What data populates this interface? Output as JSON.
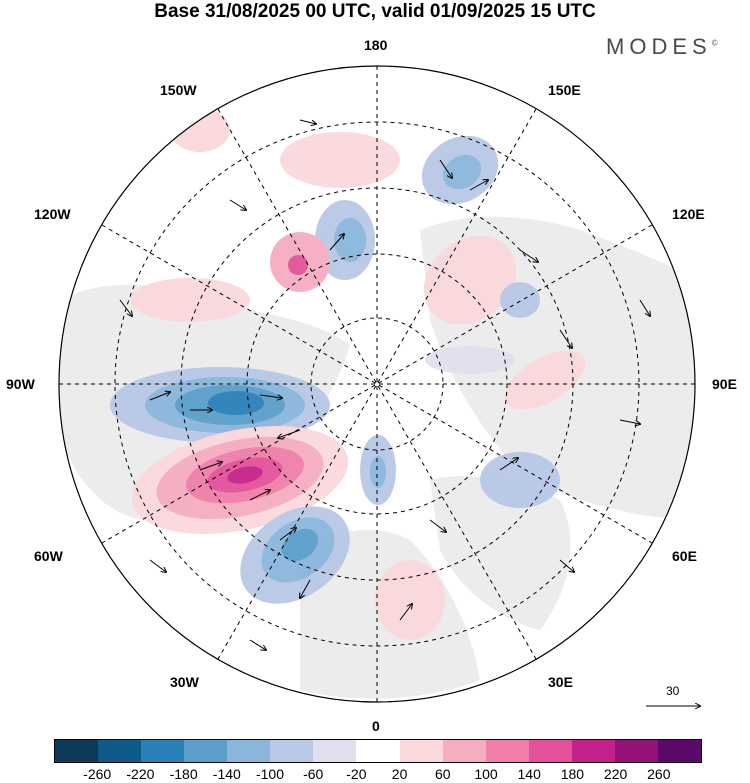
{
  "title": "Base 31/08/2025 00 UTC, valid 01/09/2025 15 UTC",
  "brand": "MODES",
  "brand_mark": "©",
  "longitude_labels": {
    "n180": "180",
    "w150": "150W",
    "e150": "150E",
    "w120": "120W",
    "e120": "120E",
    "w90": "90W",
    "e90": "90E",
    "w60": "60W",
    "e60": "60E",
    "w30": "30W",
    "e30": "30E",
    "s0": "0"
  },
  "vector_scale_label": "30",
  "colorbar": {
    "colors": [
      "#0d3a5a",
      "#0e5a8a",
      "#2a80b8",
      "#5a9fcc",
      "#8ab6dc",
      "#b8c8e6",
      "#e2e0f0",
      "#ffffff",
      "#fbd8dc",
      "#f5adc0",
      "#ef7fa9",
      "#e4519a",
      "#c5218a",
      "#961178",
      "#5c0a6a"
    ],
    "ticks": [
      "-260",
      "-220",
      "-180",
      "-140",
      "-100",
      "-60",
      "-20",
      "20",
      "60",
      "100",
      "140",
      "180",
      "220",
      "260"
    ]
  }
}
